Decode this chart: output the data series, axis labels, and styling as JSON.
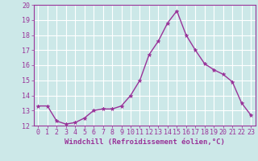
{
  "x": [
    0,
    1,
    2,
    3,
    4,
    5,
    6,
    7,
    8,
    9,
    10,
    11,
    12,
    13,
    14,
    15,
    16,
    17,
    18,
    19,
    20,
    21,
    22,
    23
  ],
  "y": [
    13.3,
    13.3,
    12.3,
    12.1,
    12.2,
    12.5,
    13.0,
    13.1,
    13.1,
    13.3,
    14.0,
    15.0,
    16.7,
    17.6,
    18.8,
    19.6,
    18.0,
    17.0,
    16.1,
    15.7,
    15.4,
    14.9,
    13.5,
    12.7
  ],
  "line_color": "#993399",
  "marker": "*",
  "marker_size": 3.5,
  "xlabel": "Windchill (Refroidissement éolien,°C)",
  "xlabel_fontsize": 6.5,
  "ylim": [
    12,
    20
  ],
  "xlim": [
    -0.5,
    23.5
  ],
  "yticks": [
    12,
    13,
    14,
    15,
    16,
    17,
    18,
    19,
    20
  ],
  "xticks": [
    0,
    1,
    2,
    3,
    4,
    5,
    6,
    7,
    8,
    9,
    10,
    11,
    12,
    13,
    14,
    15,
    16,
    17,
    18,
    19,
    20,
    21,
    22,
    23
  ],
  "bg_color": "#cce8e8",
  "grid_color": "#aacccc",
  "tick_color": "#993399",
  "tick_fontsize": 6,
  "line_width": 1.0,
  "spine_color": "#993399"
}
